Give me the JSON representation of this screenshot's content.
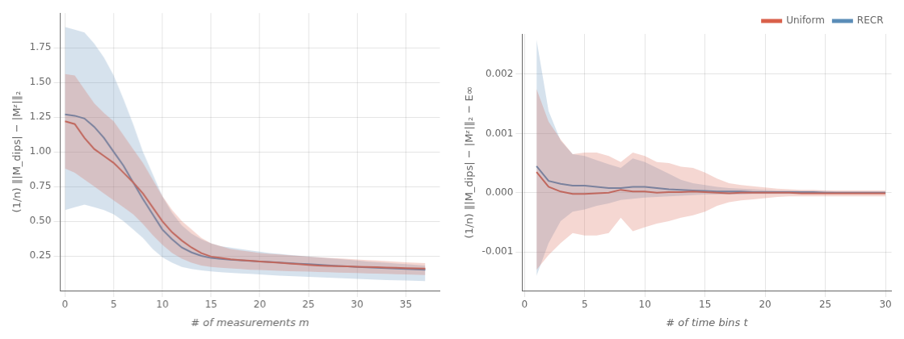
{
  "chart_data": [
    {
      "type": "line",
      "xlabel": "# of measurements m",
      "ylabel": "(1/n) ‖|M_dips| − |Mᶻ|‖₂",
      "xlim": [
        -0.5,
        38.5
      ],
      "ylim": [
        0.0,
        2.0
      ],
      "xticks": [
        0,
        5,
        10,
        15,
        20,
        25,
        30,
        35
      ],
      "yticks": [
        0.25,
        {
          "value": 0.5,
          "label": "0.50"
        },
        0.75,
        {
          "value": 1.0,
          "label": "1.00"
        },
        1.25,
        {
          "value": 1.5,
          "label": "1.50"
        },
        1.75
      ],
      "grid": true,
      "x": [
        0,
        1,
        2,
        3,
        4,
        5,
        6,
        7,
        8,
        9,
        10,
        11,
        12,
        13,
        14,
        15,
        16,
        17,
        18,
        19,
        20,
        21,
        22,
        23,
        24,
        25,
        26,
        27,
        28,
        29,
        30,
        31,
        32,
        33,
        34,
        35,
        37
      ],
      "series": [
        {
          "color": "#d9604a",
          "values": [
            1.22,
            1.2,
            1.1,
            1.02,
            0.97,
            0.92,
            0.85,
            0.78,
            0.7,
            0.6,
            0.5,
            0.42,
            0.36,
            0.31,
            0.27,
            0.245,
            0.235,
            0.225,
            0.22,
            0.215,
            0.21,
            0.205,
            0.2,
            0.195,
            0.19,
            0.185,
            0.18,
            0.178,
            0.176,
            0.174,
            0.172,
            0.17,
            0.168,
            0.166,
            0.164,
            0.162,
            0.158
          ],
          "lower": [
            0.88,
            0.85,
            0.8,
            0.75,
            0.7,
            0.65,
            0.6,
            0.55,
            0.48,
            0.4,
            0.33,
            0.27,
            0.23,
            0.2,
            0.18,
            0.17,
            0.165,
            0.16,
            0.155,
            0.15,
            0.148,
            0.145,
            0.142,
            0.14,
            0.138,
            0.136,
            0.134,
            0.132,
            0.13,
            0.128,
            0.126,
            0.124,
            0.122,
            0.12,
            0.118,
            0.116,
            0.112
          ],
          "upper": [
            1.56,
            1.55,
            1.45,
            1.35,
            1.28,
            1.22,
            1.12,
            1.02,
            0.92,
            0.8,
            0.68,
            0.58,
            0.5,
            0.44,
            0.38,
            0.34,
            0.32,
            0.3,
            0.29,
            0.28,
            0.27,
            0.265,
            0.26,
            0.255,
            0.25,
            0.245,
            0.24,
            0.236,
            0.232,
            0.228,
            0.224,
            0.22,
            0.216,
            0.212,
            0.208,
            0.204,
            0.198
          ]
        },
        {
          "color": "#5b8db8",
          "values": [
            1.27,
            1.26,
            1.24,
            1.18,
            1.1,
            1.0,
            0.9,
            0.78,
            0.66,
            0.55,
            0.44,
            0.37,
            0.31,
            0.275,
            0.25,
            0.235,
            0.228,
            0.222,
            0.218,
            0.214,
            0.21,
            0.206,
            0.202,
            0.198,
            0.194,
            0.19,
            0.186,
            0.182,
            0.178,
            0.174,
            0.17,
            0.167,
            0.164,
            0.161,
            0.158,
            0.155,
            0.15
          ],
          "lower": [
            0.58,
            0.6,
            0.62,
            0.6,
            0.58,
            0.55,
            0.5,
            0.44,
            0.38,
            0.3,
            0.24,
            0.2,
            0.17,
            0.155,
            0.145,
            0.138,
            0.133,
            0.128,
            0.124,
            0.12,
            0.116,
            0.112,
            0.108,
            0.105,
            0.102,
            0.099,
            0.096,
            0.093,
            0.09,
            0.087,
            0.084,
            0.081,
            0.078,
            0.076,
            0.074,
            0.072,
            0.068
          ],
          "upper": [
            1.9,
            1.88,
            1.86,
            1.78,
            1.68,
            1.55,
            1.38,
            1.2,
            1.0,
            0.84,
            0.68,
            0.56,
            0.47,
            0.41,
            0.37,
            0.34,
            0.32,
            0.31,
            0.3,
            0.29,
            0.28,
            0.27,
            0.265,
            0.258,
            0.252,
            0.246,
            0.24,
            0.234,
            0.228,
            0.222,
            0.216,
            0.21,
            0.205,
            0.2,
            0.195,
            0.19,
            0.18
          ]
        }
      ]
    },
    {
      "type": "line",
      "xlabel": "# of time bins t",
      "ylabel": "(1/n) ‖|M_dips| − |Mᶻ|‖₂ − E∞",
      "xlim": [
        -0.2,
        30.5
      ],
      "ylim": [
        -0.00165,
        0.00268
      ],
      "xticks": [
        0,
        5,
        10,
        15,
        20,
        25,
        30
      ],
      "yticks": [
        -0.001,
        {
          "value": 0.0,
          "label": "0.000"
        },
        0.001,
        0.002
      ],
      "grid": true,
      "legend": "upper right",
      "x": [
        1,
        2,
        3,
        4,
        5,
        6,
        7,
        8,
        9,
        10,
        11,
        12,
        13,
        14,
        15,
        16,
        17,
        18,
        19,
        20,
        21,
        22,
        23,
        24,
        25,
        26,
        27,
        28,
        29,
        30
      ],
      "series": [
        {
          "name": "Uniform",
          "color": "#d9604a",
          "values": [
            0.00035,
            0.0001,
            2e-05,
            -2e-05,
            -2e-05,
            -1e-05,
            0.0,
            5e-05,
            2e-05,
            2e-05,
            0.0,
            1e-05,
            1e-05,
            2e-05,
            1e-05,
            0.0,
            -1e-05,
            0.0,
            0.0,
            0.0,
            0.0,
            0.0,
            -1e-05,
            -1e-05,
            -1e-05,
            -1e-05,
            -1e-05,
            -1e-05,
            -1e-05,
            -1e-05
          ],
          "lower": [
            -0.0013,
            -0.00105,
            -0.00085,
            -0.00068,
            -0.00072,
            -0.00072,
            -0.00068,
            -0.00042,
            -0.00065,
            -0.00058,
            -0.00052,
            -0.00048,
            -0.00042,
            -0.00038,
            -0.00032,
            -0.00022,
            -0.00016,
            -0.00013,
            -0.00011,
            -9e-05,
            -7e-05,
            -6e-05,
            -6e-05,
            -6e-05,
            -6e-05,
            -6e-05,
            -6e-05,
            -6e-05,
            -6e-05,
            -6e-05
          ],
          "upper": [
            0.00175,
            0.0012,
            0.0009,
            0.00065,
            0.00068,
            0.00068,
            0.00062,
            0.00052,
            0.00068,
            0.00062,
            0.00052,
            0.0005,
            0.00044,
            0.00042,
            0.00034,
            0.00024,
            0.00016,
            0.00013,
            0.00011,
            9e-05,
            7e-05,
            6e-05,
            5e-05,
            5e-05,
            4e-05,
            4e-05,
            4e-05,
            4e-05,
            4e-05,
            4e-05
          ]
        },
        {
          "name": "RECR",
          "color": "#5b8db8",
          "values": [
            0.00045,
            0.0002,
            0.00015,
            0.00012,
            0.00012,
            0.0001,
            8e-05,
            8e-05,
            0.0001,
            0.0001,
            8e-05,
            6e-05,
            5e-05,
            4e-05,
            3e-05,
            2e-05,
            2e-05,
            2e-05,
            1e-05,
            1e-05,
            1e-05,
            1e-05,
            1e-05,
            1e-05,
            0.0,
            0.0,
            0.0,
            0.0,
            0.0,
            0.0
          ],
          "lower": [
            -0.0014,
            -0.00085,
            -0.00048,
            -0.00032,
            -0.00028,
            -0.00022,
            -0.00018,
            -0.00012,
            -0.0001,
            -8e-05,
            -7e-05,
            -6e-05,
            -5e-05,
            -4e-05,
            -3e-05,
            -3e-05,
            -3e-05,
            -3e-05,
            -2e-05,
            -2e-05,
            -2e-05,
            -2e-05,
            -2e-05,
            -2e-05,
            -2e-05,
            -2e-05,
            -2e-05,
            -2e-05,
            -2e-05,
            -2e-05
          ],
          "upper": [
            0.00258,
            0.00138,
            0.00088,
            0.00065,
            0.00062,
            0.00055,
            0.00048,
            0.00042,
            0.00058,
            0.00052,
            0.00042,
            0.00032,
            0.00022,
            0.00016,
            0.00013,
            0.0001,
            8e-05,
            7e-05,
            6e-05,
            5e-05,
            4e-05,
            4e-05,
            3e-05,
            3e-05,
            3e-05,
            2e-05,
            2e-05,
            2e-05,
            2e-05,
            2e-05
          ]
        }
      ]
    }
  ]
}
